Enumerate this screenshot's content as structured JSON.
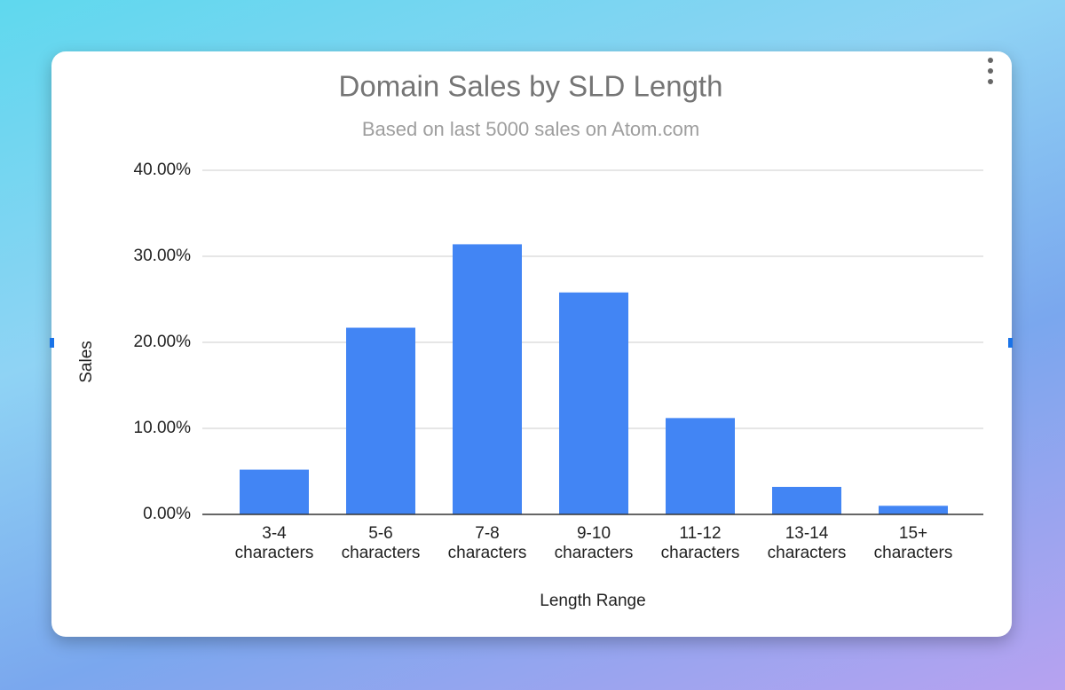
{
  "chart_data": {
    "type": "bar",
    "title": "Domain Sales by SLD Length",
    "subtitle": "Based on last 5000 sales on Atom.com",
    "x_label": "Length Range",
    "y_label": "Sales",
    "categories": [
      "3-4 characters",
      "5-6 characters",
      "7-8 characters",
      "9-10 characters",
      "11-12 characters",
      "13-14 characters",
      "15+ characters"
    ],
    "values": [
      5.2,
      21.7,
      31.4,
      25.8,
      11.2,
      3.2,
      1.0
    ],
    "color": "#4285f4",
    "ylim": [
      0,
      40
    ],
    "yticks": [
      {
        "value": 0,
        "label": "0.00%"
      },
      {
        "value": 10,
        "label": "10.00%"
      },
      {
        "value": 20,
        "label": "20.00%"
      },
      {
        "value": 30,
        "label": "30.00%"
      },
      {
        "value": 40,
        "label": "40.00%"
      }
    ],
    "grid": true
  }
}
